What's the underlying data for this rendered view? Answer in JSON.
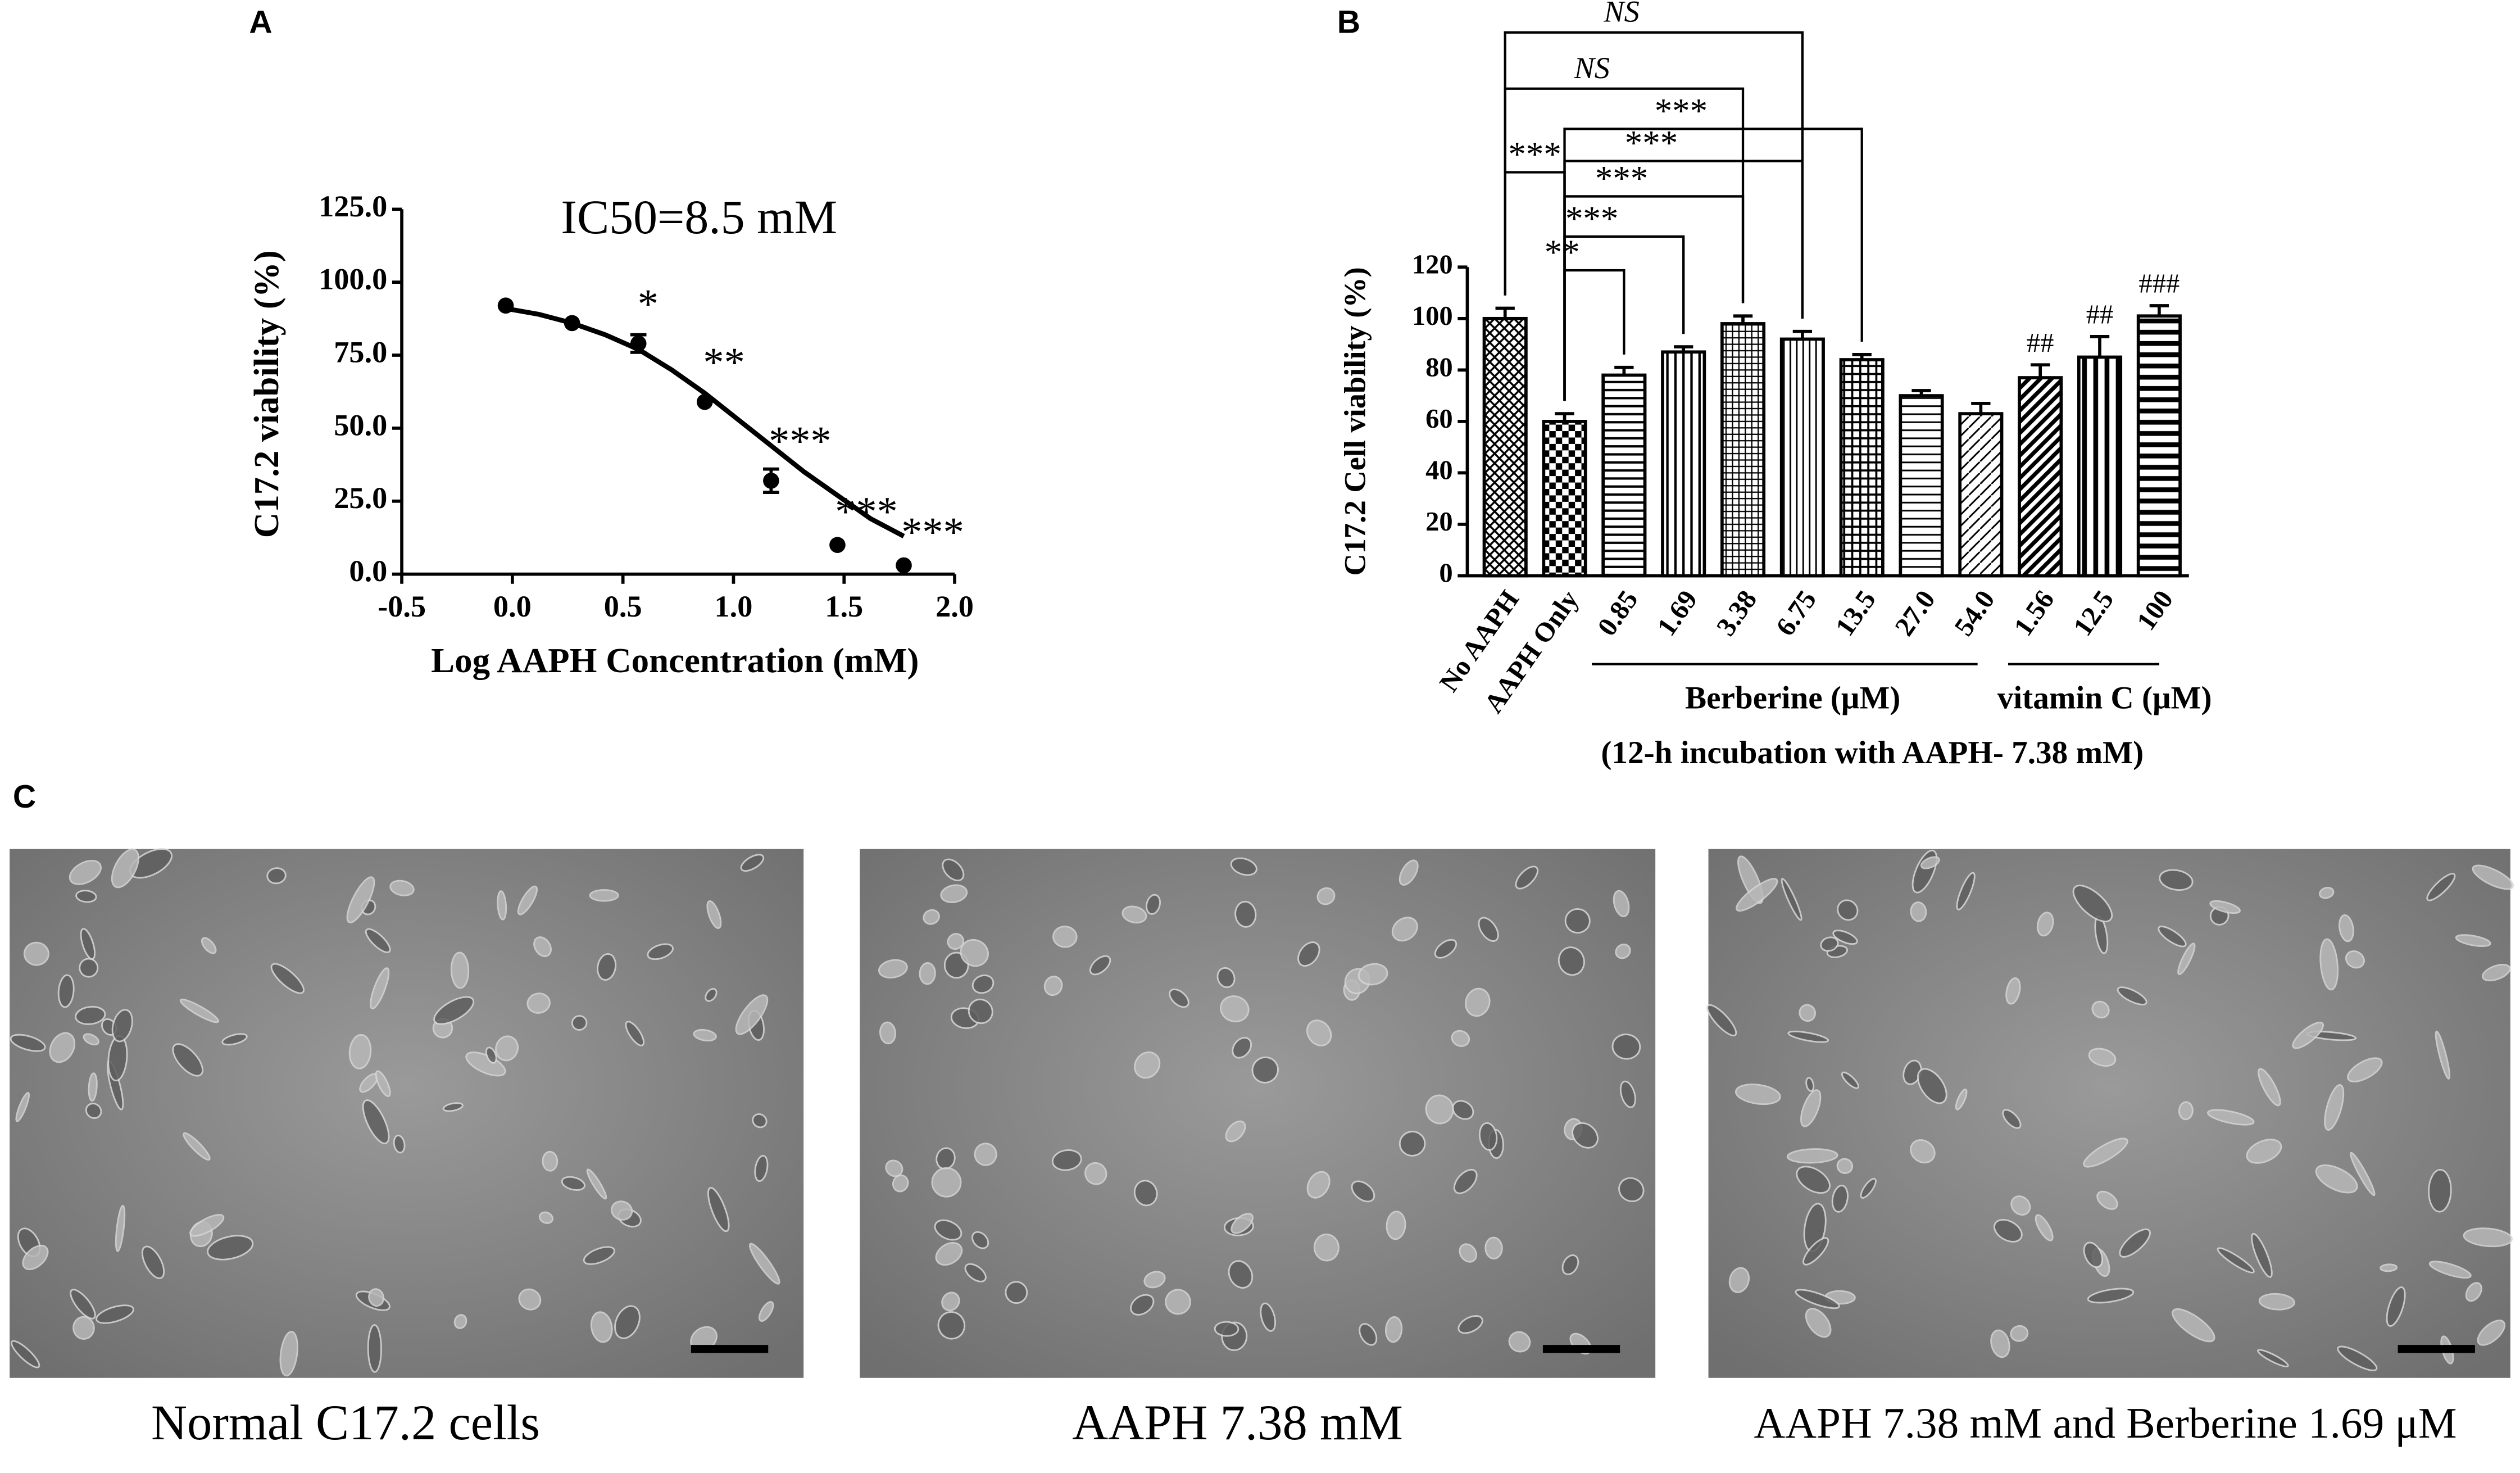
{
  "chart_data": [
    {
      "type": "scatter",
      "panel": "A",
      "annotation": "IC50=8.5 mM",
      "xlabel": "Log AAPH Concentration (mM)",
      "ylabel": "C17.2  viability (%)",
      "x": [
        -0.03,
        0.27,
        0.57,
        0.87,
        1.17,
        1.47,
        1.77
      ],
      "values": [
        92,
        86,
        79,
        59,
        32,
        10,
        3
      ],
      "errors": [
        null,
        null,
        3,
        null,
        4,
        null,
        null
      ],
      "significance": [
        null,
        null,
        "*",
        "**",
        "***",
        "***",
        "***"
      ],
      "fit": {
        "x": [
          -0.03,
          0.12,
          0.27,
          0.42,
          0.57,
          0.72,
          0.87,
          1.02,
          1.17,
          1.32,
          1.47,
          1.62,
          1.77
        ],
        "y": [
          91,
          89,
          86,
          82,
          77,
          70,
          62,
          53,
          44,
          35,
          27,
          19,
          13
        ]
      },
      "color": "#000000",
      "xlim": [
        -0.5,
        2.0
      ],
      "xticks": [
        -0.5,
        {
          "value": 0,
          "label": "0.0"
        },
        0.5,
        {
          "value": 1,
          "label": "1.0"
        },
        1.5,
        {
          "value": 2,
          "label": "2.0"
        }
      ],
      "ylim": [
        0,
        125
      ],
      "yticks": [
        {
          "value": 0,
          "label": "0.0"
        },
        {
          "value": 25,
          "label": "25.0"
        },
        {
          "value": 50,
          "label": "50.0"
        },
        {
          "value": 75,
          "label": "75.0"
        },
        {
          "value": 100,
          "label": "100.0"
        },
        {
          "value": 125,
          "label": "125.0"
        }
      ]
    },
    {
      "type": "bar",
      "panel": "B",
      "ylabel": "C17.2 Cell viability (%)",
      "categories": [
        "No AAPH",
        "AAPH Only",
        "0.85",
        "1.69",
        "3.38",
        "6.75",
        "13.5",
        "27.0",
        "54.0",
        "1.56",
        "12.5",
        "100"
      ],
      "values": [
        100,
        60,
        78,
        87,
        98,
        92,
        84,
        70,
        63,
        77,
        85,
        101
      ],
      "errors": [
        4,
        3,
        3,
        2,
        3,
        3,
        2,
        2,
        4,
        5,
        8,
        4
      ],
      "significance": [
        null,
        null,
        null,
        null,
        null,
        null,
        null,
        null,
        null,
        "##",
        "##",
        "###"
      ],
      "groups": [
        {
          "label": "Berberine (μM)",
          "from": 2,
          "to": 8
        },
        {
          "label": "vitamin C (μM)",
          "from": 9,
          "to": 11
        }
      ],
      "footnote": "(12-h incubation with AAPH- 7.38 mM)",
      "comparisons": [
        {
          "from": 0,
          "to": 5,
          "label": "NS"
        },
        {
          "from": 0,
          "to": 4,
          "label": "NS"
        },
        {
          "from": 0,
          "to": 1,
          "label": "***"
        },
        {
          "from": 1,
          "to": 6,
          "label": "***"
        },
        {
          "from": 1,
          "to": 5,
          "label": "***"
        },
        {
          "from": 1,
          "to": 4,
          "label": "***"
        },
        {
          "from": 1,
          "to": 3,
          "label": "***"
        },
        {
          "from": 1,
          "to": 2,
          "label": "**"
        }
      ],
      "ylim": [
        0,
        120
      ],
      "yticks": [
        0,
        20,
        40,
        60,
        80,
        100,
        120
      ]
    }
  ],
  "micrographs": {
    "panel": "C",
    "captions": [
      "Normal C17.2 cells",
      "AAPH 7.38 mM",
      "AAPH 7.38 mM and Berberine 1.69 μM"
    ]
  }
}
